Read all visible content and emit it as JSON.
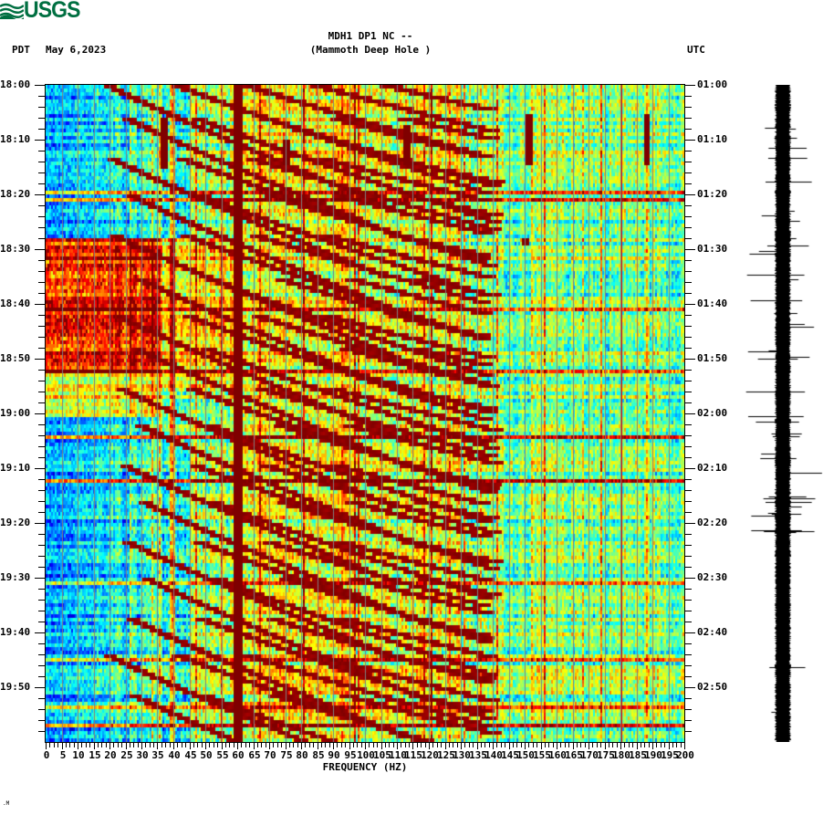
{
  "header": {
    "logo_text": "USGS",
    "timezone_left": "PDT",
    "date": "May 6,2023",
    "title": "MDH1 DP1 NC --",
    "subtitle": "(Mammoth Deep Hole )",
    "timezone_right": "UTC"
  },
  "footer": {
    "mark": ".M"
  },
  "colors": {
    "logo_green": "#006f41",
    "grid_line": "#7f7f7f",
    "persistent_line": "#7f0000",
    "seismogram": "#000000"
  },
  "chart_data": {
    "type": "heatmap",
    "title": "MDH1 DP1 NC -- (Mammoth Deep Hole )",
    "subtitle": "May 6,2023",
    "xlabel": "FREQUENCY (HZ)",
    "ylabel_left": "PDT",
    "ylabel_right": "UTC",
    "colormap": "jet",
    "xlim": [
      0,
      200
    ],
    "x_ticks": [
      0,
      5,
      10,
      15,
      20,
      25,
      30,
      35,
      40,
      45,
      50,
      55,
      60,
      65,
      70,
      75,
      80,
      85,
      90,
      95,
      100,
      105,
      110,
      115,
      120,
      125,
      130,
      135,
      140,
      145,
      150,
      155,
      160,
      165,
      170,
      175,
      180,
      185,
      190,
      195,
      200
    ],
    "x_tick_labels": [
      "0",
      "5",
      "10",
      "15",
      "20",
      "25",
      "30",
      "35",
      "40",
      "45",
      "50",
      "55",
      "60",
      "65",
      "70",
      "75",
      "80",
      "85",
      "90",
      "95",
      "100",
      "105",
      "110",
      "115",
      "120",
      "125",
      "130",
      "135",
      "140",
      "145",
      "150",
      "155",
      "160",
      "165",
      "170",
      "175",
      "180",
      "185",
      "190",
      "195",
      "200"
    ],
    "y_left_labels": [
      "18:00",
      "18:10",
      "18:20",
      "18:30",
      "18:40",
      "18:50",
      "19:00",
      "19:10",
      "19:20",
      "19:30",
      "19:40",
      "19:50"
    ],
    "y_right_labels": [
      "01:00",
      "01:10",
      "01:20",
      "01:30",
      "01:40",
      "01:50",
      "02:00",
      "02:10",
      "02:20",
      "02:30",
      "02:40",
      "02:50"
    ],
    "y_range_minutes": [
      0,
      120
    ],
    "minor_tick_minutes": 2,
    "grid": {
      "vertical_every_hz": 5
    },
    "features": {
      "persistent_lines_hz": [
        60,
        180
      ],
      "transient_vertical_streaks": [
        {
          "freq_hz": 37,
          "start_min": 6,
          "end_min": 15
        },
        {
          "freq_hz": 75,
          "start_min": 10,
          "end_min": 14
        },
        {
          "freq_hz": 113,
          "start_min": 7,
          "end_min": 14
        },
        {
          "freq_hz": 151,
          "start_min": 5,
          "end_min": 14
        },
        {
          "freq_hz": 188,
          "start_min": 5,
          "end_min": 14
        },
        {
          "freq_hz": 150,
          "start_min": 28,
          "end_min": 29
        }
      ],
      "glide_sweeps_description": "Repeating upward-curving harmonic glides (dark red) roughly every 6-7 minutes, fundamental starting near 20-40 Hz and rising; harmonics spaced ~20 Hz up to ~130 Hz",
      "sweep_start_minutes": [
        0,
        6,
        13,
        20,
        27,
        35,
        42,
        48,
        55,
        62,
        69,
        76,
        83,
        90,
        97,
        104,
        111
      ],
      "broadband_noise_window_min": [
        28,
        52
      ],
      "low_energy_region": "0-30 Hz blue/cyan during 0-28 min and 68-120 min"
    },
    "seismogram": {
      "position": "right",
      "orientation": "vertical",
      "amplitude_peak_min": [
        28,
        82
      ]
    }
  }
}
